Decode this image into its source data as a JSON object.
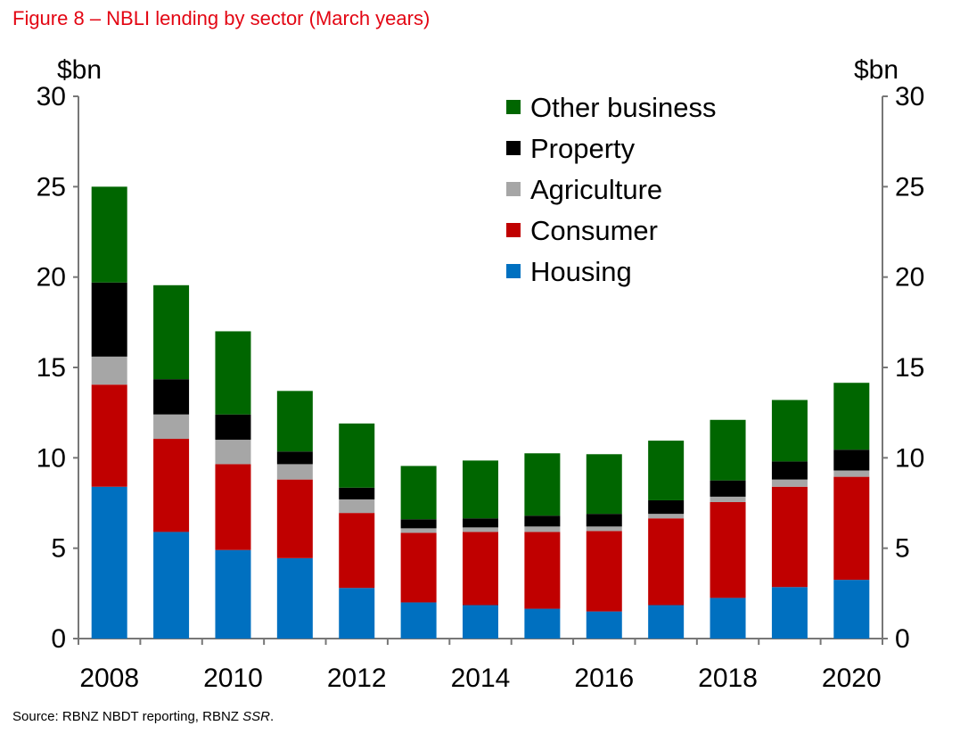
{
  "title": "Figure 8 – NBLI lending by sector (March years)",
  "source": {
    "text": "Source: RBNZ NBDT reporting, RBNZ ",
    "italic": "SSR",
    "end": "."
  },
  "chart_data": {
    "type": "bar",
    "stacked": true,
    "title": "Figure 8 – NBLI lending by sector (March years)",
    "ylabel_left": "$bn",
    "ylabel_right": "$bn",
    "ylim": [
      0,
      30
    ],
    "yticks": [
      "0",
      "5",
      "10",
      "15",
      "20",
      "25",
      "30"
    ],
    "xtick_labels": [
      "2008",
      "2010",
      "2012",
      "2014",
      "2016",
      "2018",
      "2020"
    ],
    "categories": [
      "2008",
      "2009",
      "2010",
      "2011",
      "2012",
      "2013",
      "2014",
      "2015",
      "2016",
      "2017",
      "2018",
      "2019",
      "2020"
    ],
    "legend_position": "top-right",
    "grid": false,
    "series": [
      {
        "name": "Housing",
        "color": "#0070c0",
        "values": [
          8.4,
          5.9,
          4.9,
          4.45,
          2.8,
          2.0,
          1.85,
          1.65,
          1.5,
          1.85,
          2.25,
          2.85,
          3.25
        ]
      },
      {
        "name": "Consumer",
        "color": "#c00000",
        "values": [
          5.65,
          5.15,
          4.75,
          4.35,
          4.15,
          3.85,
          4.05,
          4.25,
          4.45,
          4.8,
          5.3,
          5.55,
          5.7
        ]
      },
      {
        "name": "Agriculture",
        "color": "#a6a6a6",
        "values": [
          1.55,
          1.35,
          1.35,
          0.85,
          0.75,
          0.25,
          0.25,
          0.3,
          0.25,
          0.25,
          0.3,
          0.4,
          0.35
        ]
      },
      {
        "name": "Property",
        "color": "#000000",
        "values": [
          4.1,
          1.95,
          1.4,
          0.7,
          0.65,
          0.5,
          0.5,
          0.6,
          0.7,
          0.75,
          0.9,
          1.0,
          1.15
        ]
      },
      {
        "name": "Other business",
        "color": "#006600",
        "values": [
          5.3,
          5.2,
          4.6,
          3.35,
          3.55,
          2.95,
          3.2,
          3.45,
          3.3,
          3.3,
          3.35,
          3.4,
          3.7
        ]
      }
    ]
  }
}
